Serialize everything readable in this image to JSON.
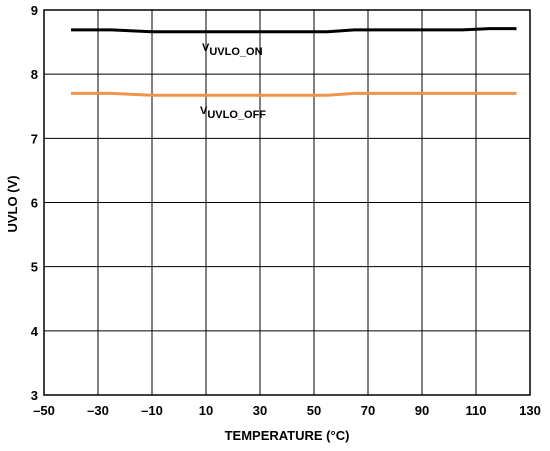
{
  "chart_data": {
    "type": "line",
    "title": "",
    "xlabel": "TEMPERATURE (°C)",
    "ylabel": "UVLO (V)",
    "xlim": [
      -50,
      130
    ],
    "ylim": [
      3,
      9
    ],
    "x_ticks": [
      "–50",
      "–30",
      "–10",
      "10",
      "30",
      "50",
      "70",
      "90",
      "110",
      "130"
    ],
    "y_ticks": [
      "3",
      "4",
      "5",
      "6",
      "7",
      "8",
      "9"
    ],
    "grid": true,
    "series": [
      {
        "name": "VUVLO_ON",
        "label_main": "V",
        "label_sub": "UVLO_ON",
        "color": "#000000",
        "x": [
          -40,
          -25,
          -10,
          0,
          25,
          55,
          65,
          105,
          115,
          125
        ],
        "y": [
          8.69,
          8.69,
          8.66,
          8.66,
          8.66,
          8.66,
          8.69,
          8.69,
          8.71,
          8.71
        ]
      },
      {
        "name": "VUVLO_OFF",
        "label_main": "V",
        "label_sub": "UVLO_OFF",
        "color": "#f0944d",
        "x": [
          -40,
          -25,
          -10,
          0,
          25,
          55,
          65,
          105,
          115,
          125
        ],
        "y": [
          7.7,
          7.7,
          7.67,
          7.67,
          7.67,
          7.67,
          7.7,
          7.7,
          7.7,
          7.7
        ]
      }
    ]
  }
}
